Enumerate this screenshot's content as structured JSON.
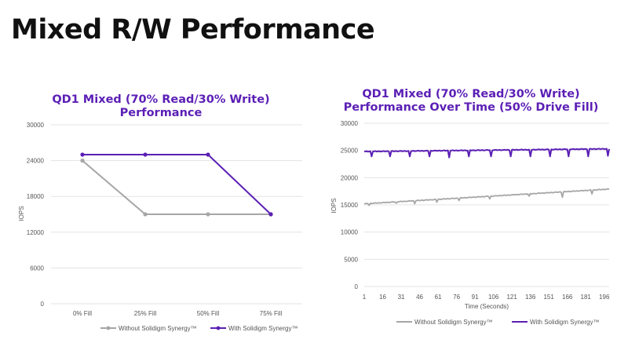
{
  "slide": {
    "title": "Mixed R/W Performance"
  },
  "colors": {
    "without": "#a6a6a6",
    "with": "#5b1fb5",
    "grid": "#e3e3e3"
  },
  "chart_data": [
    {
      "type": "line",
      "title": "QD1 Mixed (70% Read/30% Write) Performance",
      "ylabel": "IOPS",
      "xlabel": "",
      "categories": [
        "0% Fill",
        "25% Fill",
        "50% Fill",
        "75% Fill"
      ],
      "yticks": [
        "0",
        "6000",
        "12000",
        "18000",
        "24000",
        "30000"
      ],
      "ylim": [
        0,
        30000
      ],
      "grid": true,
      "legend": "bottom",
      "series": [
        {
          "name": "Without Solidigm Synergy™",
          "values": [
            24000,
            15000,
            15000,
            15000
          ],
          "markers": true
        },
        {
          "name": "With Solidigm Synergy™",
          "values": [
            25000,
            25000,
            25000,
            15000
          ],
          "markers": true
        }
      ]
    },
    {
      "type": "line",
      "title": "QD1 Mixed (70% Read/30% Write) Performance Over Time (50% Drive Fill)",
      "ylabel": "IOPS",
      "xlabel": "Time (Seconds)",
      "xticks": [
        "1",
        "16",
        "31",
        "46",
        "61",
        "76",
        "91",
        "106",
        "121",
        "136",
        "151",
        "166",
        "181",
        "196"
      ],
      "xlim": [
        1,
        200
      ],
      "yticks": [
        "0",
        "5000",
        "10000",
        "15000",
        "20000",
        "25000",
        "30000"
      ],
      "ylim": [
        0,
        30000
      ],
      "grid": true,
      "legend": "bottom",
      "series": [
        {
          "name": "Without Solidigm Synergy™",
          "start": 15200,
          "end": 17900,
          "dips": [
            [
              5,
              14900
            ],
            [
              27,
              15300
            ],
            [
              42,
              15200
            ],
            [
              60,
              15500
            ],
            [
              78,
              15800
            ],
            [
              103,
              16100
            ],
            [
              135,
              16600
            ],
            [
              162,
              16400
            ],
            [
              186,
              17000
            ]
          ]
        },
        {
          "name": "With Solidigm Synergy™",
          "start": 24800,
          "end": 25300,
          "dips": [
            [
              7,
              23900
            ],
            [
              22,
              23900
            ],
            [
              38,
              23900
            ],
            [
              54,
              23900
            ],
            [
              70,
              23700
            ],
            [
              86,
              23900
            ],
            [
              104,
              23900
            ],
            [
              120,
              23900
            ],
            [
              136,
              23900
            ],
            [
              152,
              23900
            ],
            [
              167,
              23900
            ],
            [
              183,
              23900
            ],
            [
              199,
              24000
            ]
          ]
        }
      ]
    }
  ]
}
